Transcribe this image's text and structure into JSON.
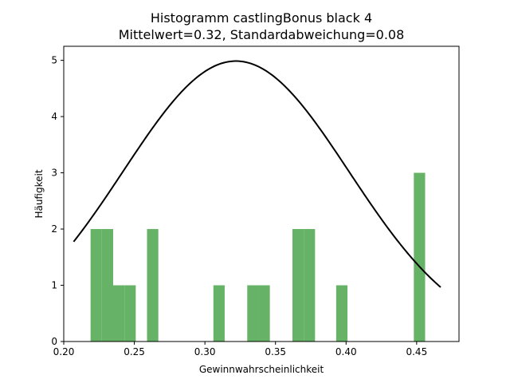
{
  "colors": {
    "bar": "#66b266",
    "curve": "#000000",
    "axis": "#000000",
    "background": "#ffffff"
  },
  "chart_data": {
    "type": "bar",
    "title": "Histogramm castlingBonus black 4",
    "subtitle": "Mittelwert=0.32, Standardabweichung=0.08",
    "xlabel": "Gewinnwahrscheinlichkeit",
    "ylabel": "Häufigkeit",
    "xlim": [
      0.2,
      0.48
    ],
    "ylim": [
      0,
      5.25
    ],
    "xticks": [
      0.2,
      0.25,
      0.3,
      0.35,
      0.4,
      0.45
    ],
    "xtick_labels": [
      "0.20",
      "0.25",
      "0.30",
      "0.35",
      "0.40",
      "0.45"
    ],
    "yticks": [
      0,
      1,
      2,
      3,
      4,
      5
    ],
    "ytick_labels": [
      "0",
      "1",
      "2",
      "3",
      "4",
      "5"
    ],
    "bin_width": 0.008,
    "bars": [
      {
        "x": 0.219,
        "value": 2
      },
      {
        "x": 0.227,
        "value": 2
      },
      {
        "x": 0.235,
        "value": 1
      },
      {
        "x": 0.243,
        "value": 1
      },
      {
        "x": 0.259,
        "value": 2
      },
      {
        "x": 0.306,
        "value": 1
      },
      {
        "x": 0.33,
        "value": 1
      },
      {
        "x": 0.338,
        "value": 1
      },
      {
        "x": 0.362,
        "value": 2
      },
      {
        "x": 0.37,
        "value": 2
      },
      {
        "x": 0.393,
        "value": 1
      },
      {
        "x": 0.448,
        "value": 3
      }
    ],
    "curve": {
      "type": "normal",
      "mean": 0.322,
      "std": 0.08,
      "x_range": [
        0.207,
        0.467
      ]
    },
    "grid": false,
    "legend": "none"
  }
}
